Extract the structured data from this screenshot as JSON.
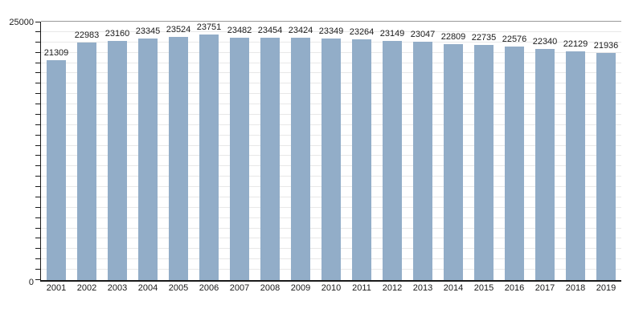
{
  "chart_data": {
    "type": "bar",
    "title": "",
    "categories": [
      "2001",
      "2002",
      "2003",
      "2004",
      "2005",
      "2006",
      "2007",
      "2008",
      "2009",
      "2010",
      "2011",
      "2012",
      "2013",
      "2014",
      "2015",
      "2016",
      "2017",
      "2018",
      "2019"
    ],
    "values": [
      21309,
      22983,
      23160,
      23345,
      23524,
      23751,
      23482,
      23454,
      23424,
      23349,
      23264,
      23149,
      23047,
      22809,
      22735,
      22576,
      22340,
      22129,
      21936
    ],
    "xlabel": "",
    "ylabel": "",
    "ylim": [
      0,
      25000
    ],
    "y_gridline_step": 1000,
    "grid": true,
    "legend": false,
    "data_labels_shown": true
  },
  "y_axis": {
    "max_label": "25000",
    "min_label": "0"
  },
  "colors": {
    "bar_fill": "#92adc8",
    "gridline": "#e8e8e8",
    "top_gridline": "#999999",
    "axis": "#1a1a1a",
    "text": "#1a1a1a"
  }
}
